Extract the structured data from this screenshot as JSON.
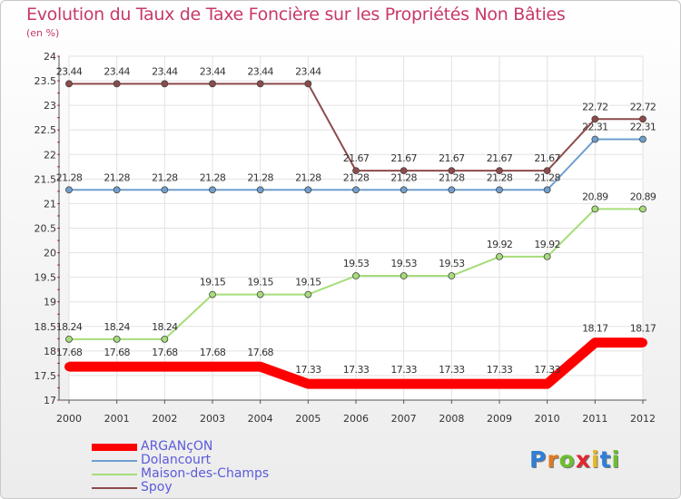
{
  "chart_data": {
    "type": "line",
    "title": "Evolution du Taux de Taxe Foncière sur les Propriétés Non Bâties",
    "unit_label": "(en %)",
    "xlabel": "",
    "ylabel": "",
    "x": [
      "2000",
      "2001",
      "2002",
      "2003",
      "2004",
      "2005",
      "2006",
      "2007",
      "2008",
      "2009",
      "2010",
      "2011",
      "2012"
    ],
    "ylim": [
      17,
      24
    ],
    "yticks": [
      "17",
      "17.5",
      "18",
      "18.5",
      "19",
      "19.5",
      "20",
      "20.5",
      "21",
      "21.5",
      "22",
      "22.5",
      "23",
      "23.5",
      "24"
    ],
    "ytick_values": [
      17,
      17.5,
      18,
      18.5,
      19,
      19.5,
      20,
      20.5,
      21,
      21.5,
      22,
      22.5,
      23,
      23.5,
      24
    ],
    "grid": true,
    "series": [
      {
        "name": "ARGANçON",
        "color": "#ff0000",
        "values": [
          17.68,
          17.68,
          17.68,
          17.68,
          17.68,
          17.33,
          17.33,
          17.33,
          17.33,
          17.33,
          17.33,
          18.17,
          18.17
        ],
        "labels": [
          "17.68",
          "17.68",
          "17.68",
          "17.68",
          "17.68",
          "17.33",
          "17.33",
          "17.33",
          "17.33",
          "17.33",
          "17.33",
          "18.17",
          "18.17"
        ]
      },
      {
        "name": "Dolancourt",
        "color": "#6f9fcf",
        "values": [
          21.28,
          21.28,
          21.28,
          21.28,
          21.28,
          21.28,
          21.28,
          21.28,
          21.28,
          21.28,
          21.28,
          22.31,
          22.31
        ],
        "labels": [
          "21.28",
          "21.28",
          "21.28",
          "21.28",
          "21.28",
          "21.28",
          "21.28",
          "21.28",
          "21.28",
          "21.28",
          "21.28",
          "22.31",
          "22.31"
        ]
      },
      {
        "name": "Maison-des-Champs",
        "color": "#a6dd7a",
        "values": [
          18.24,
          18.24,
          18.24,
          19.15,
          19.15,
          19.15,
          19.53,
          19.53,
          19.53,
          19.92,
          19.92,
          20.89,
          20.89
        ],
        "labels": [
          "18.24",
          "18.24",
          "18.24",
          "19.15",
          "19.15",
          "19.15",
          "19.53",
          "19.53",
          "19.53",
          "19.92",
          "19.92",
          "20.89",
          "20.89"
        ]
      },
      {
        "name": "Spoy",
        "color": "#8e4a4a",
        "values": [
          23.44,
          23.44,
          23.44,
          23.44,
          23.44,
          23.44,
          21.67,
          21.67,
          21.67,
          21.67,
          21.67,
          22.72,
          22.72
        ],
        "labels": [
          "23.44",
          "23.44",
          "23.44",
          "23.44",
          "23.44",
          "23.44",
          "21.67",
          "21.67",
          "21.67",
          "21.67",
          "21.67",
          "22.72",
          "22.72"
        ]
      }
    ],
    "legend": {
      "position": "bottom-left"
    }
  },
  "logo": {
    "letters": [
      "P",
      "r",
      "o",
      "x",
      "i",
      "t",
      "i"
    ],
    "colors": [
      "#2f7fd6",
      "#e07a22",
      "#6cbf2e",
      "#e3262d",
      "#e6b822",
      "#2f7fd6",
      "#6cbf2e"
    ]
  }
}
